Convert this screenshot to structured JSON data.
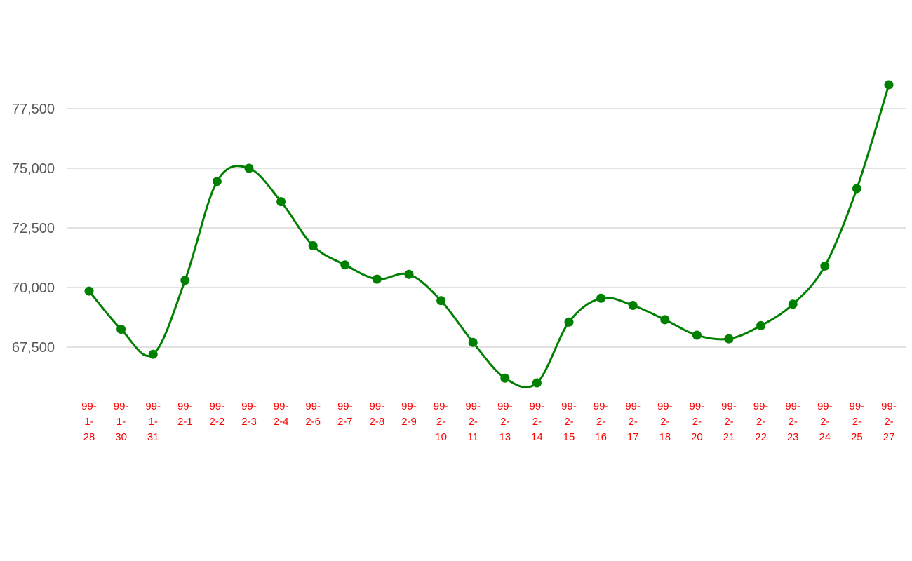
{
  "chart_data": {
    "type": "line",
    "categories": [
      "99-1-28",
      "99-1-30",
      "99-1-31",
      "99-2-1",
      "99-2-2",
      "99-2-3",
      "99-2-4",
      "99-2-6",
      "99-2-7",
      "99-2-8",
      "99-2-9",
      "99-2-10",
      "99-2-11",
      "99-2-13",
      "99-2-14",
      "99-2-15",
      "99-2-16",
      "99-2-17",
      "99-2-18",
      "99-2-20",
      "99-2-21",
      "99-2-22",
      "99-2-23",
      "99-2-24",
      "99-2-25",
      "99-2-27"
    ],
    "x_tick_lines": [
      [
        "99-",
        "1-",
        "28"
      ],
      [
        "99-",
        "1-",
        "30"
      ],
      [
        "99-",
        "1-",
        "31"
      ],
      [
        "99-",
        "2-1"
      ],
      [
        "99-",
        "2-2"
      ],
      [
        "99-",
        "2-3"
      ],
      [
        "99-",
        "2-4"
      ],
      [
        "99-",
        "2-6"
      ],
      [
        "99-",
        "2-7"
      ],
      [
        "99-",
        "2-8"
      ],
      [
        "99-",
        "2-9"
      ],
      [
        "99-",
        "2-",
        "10"
      ],
      [
        "99-",
        "2-",
        "11"
      ],
      [
        "99-",
        "2-",
        "13"
      ],
      [
        "99-",
        "2-",
        "14"
      ],
      [
        "99-",
        "2-",
        "15"
      ],
      [
        "99-",
        "2-",
        "16"
      ],
      [
        "99-",
        "2-",
        "17"
      ],
      [
        "99-",
        "2-",
        "18"
      ],
      [
        "99-",
        "2-",
        "20"
      ],
      [
        "99-",
        "2-",
        "21"
      ],
      [
        "99-",
        "2-",
        "22"
      ],
      [
        "99-",
        "2-",
        "23"
      ],
      [
        "99-",
        "2-",
        "24"
      ],
      [
        "99-",
        "2-",
        "25"
      ],
      [
        "99-",
        "2-",
        "27"
      ]
    ],
    "series": [
      {
        "values": [
          69850,
          68250,
          67200,
          70300,
          74450,
          75000,
          73600,
          71750,
          70950,
          70350,
          70550,
          69450,
          67700,
          66200,
          66000,
          68550,
          69550,
          69250,
          68650,
          68000,
          67850,
          68400,
          69300,
          70900,
          74150,
          78500
        ],
        "color": "#008000"
      }
    ],
    "title": "",
    "xlabel": "",
    "ylabel": "",
    "y_ticks": [
      67500,
      70000,
      72500,
      75000,
      77500
    ],
    "y_tick_labels": [
      "67,500",
      "70,000",
      "72,500",
      "75,000",
      "77,500"
    ],
    "ylim": [
      65000,
      80000
    ],
    "grid": true,
    "legend": "none",
    "x_tick_color": "#ff0000",
    "y_tick_color": "#595959",
    "grid_color": "#d0d0d0"
  }
}
